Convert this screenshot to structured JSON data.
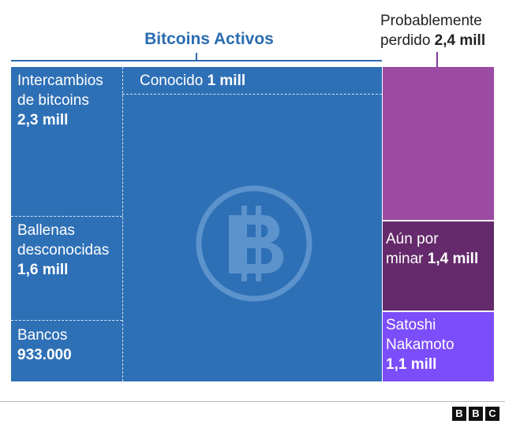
{
  "header": {
    "active_title": "Bitcoins Activos",
    "lost_line1": "Probablemente",
    "lost_line2_prefix": "perdido",
    "lost_value": "2,4 mill"
  },
  "blocks": {
    "exchanges": {
      "line1": "Intercambios",
      "line2": "de bitcoins",
      "value": "2,3 mill"
    },
    "whales": {
      "line1": "Ballenas",
      "line2": "desconocidas",
      "value": "1,6 mill"
    },
    "banks": {
      "line1": "Bancos",
      "value": "933.000"
    },
    "known": {
      "label": "Conocido",
      "value": "1 mill"
    },
    "unmined": {
      "line1": "Aún por",
      "line2_prefix": "minar",
      "value": "1,4 mill"
    },
    "satoshi": {
      "line1": "Satoshi",
      "line2": "Nakamoto",
      "value": "1,1 mill"
    }
  },
  "colors": {
    "active_blue": "#2e70b6",
    "lost_purple": "#9c4ba3",
    "unmined_purple": "#642a6b",
    "satoshi_violet": "#7c4dfa",
    "title_blue": "#2b6cb0"
  },
  "icons": {
    "center": "bitcoin-icon"
  },
  "footer": {
    "logo": [
      "B",
      "B",
      "C"
    ]
  }
}
